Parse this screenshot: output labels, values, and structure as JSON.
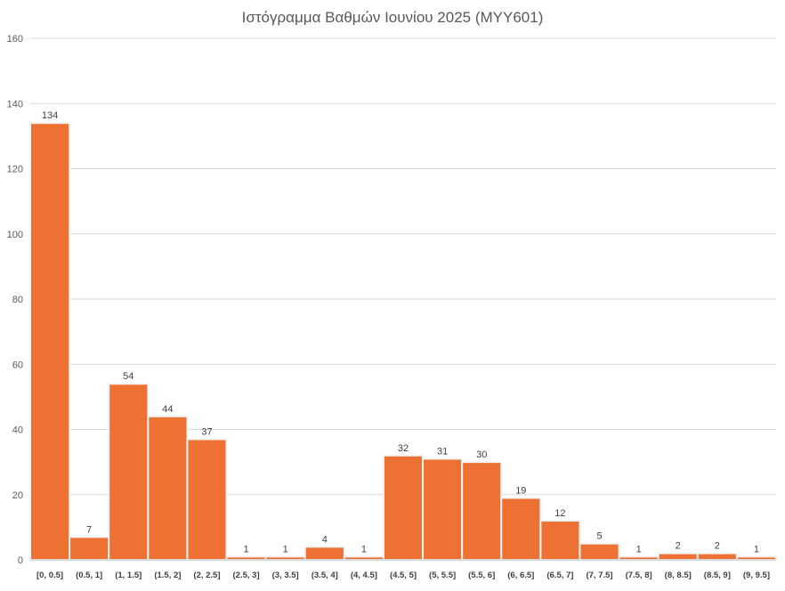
{
  "chart_data": {
    "type": "bar",
    "title": "Ιστόγραμμα Βαθμών Ιουνίου 2025 (ΜΥΥ601)",
    "xlabel": "",
    "ylabel": "",
    "categories": [
      "[0, 0.5]",
      "(0.5, 1]",
      "(1, 1.5]",
      "(1.5, 2]",
      "(2, 2.5]",
      "(2.5, 3]",
      "(3, 3.5]",
      "(3.5, 4]",
      "(4, 4.5]",
      "(4.5, 5]",
      "(5, 5.5]",
      "(5.5, 6]",
      "(6, 6.5]",
      "(6.5, 7]",
      "(7, 7.5]",
      "(7.5, 8]",
      "(8, 8.5]",
      "(8.5, 9]",
      "(9, 9.5]"
    ],
    "values": [
      134,
      7,
      54,
      44,
      37,
      1,
      1,
      4,
      1,
      32,
      31,
      30,
      19,
      12,
      5,
      1,
      2,
      2,
      1
    ],
    "ylim": [
      0,
      160
    ],
    "yticks": [
      0,
      20,
      40,
      60,
      80,
      100,
      120,
      140,
      160
    ],
    "grid": true,
    "legend": "none",
    "bar_color": "#ED7132",
    "data_labels": true
  }
}
